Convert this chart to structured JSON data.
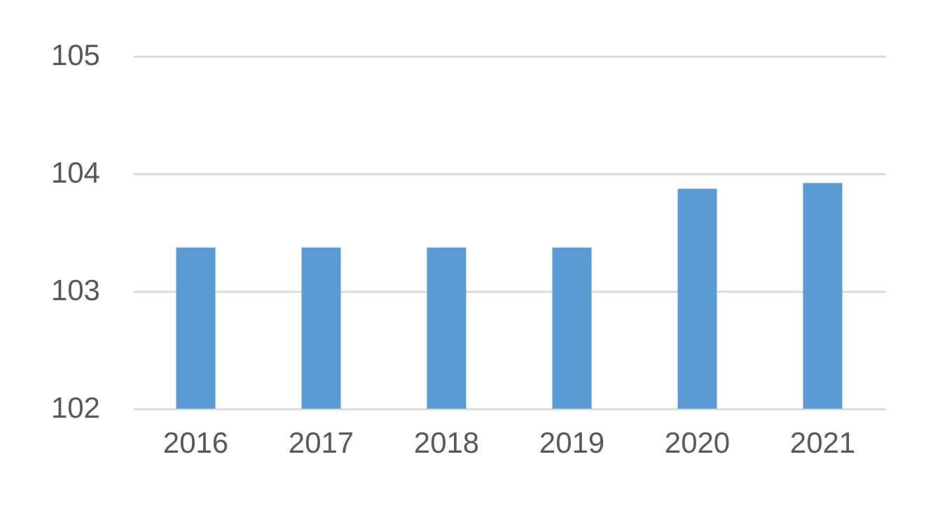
{
  "chart_data": {
    "type": "bar",
    "categories": [
      "2016",
      "2017",
      "2018",
      "2019",
      "2020",
      "2021"
    ],
    "values": [
      103.37,
      103.37,
      103.37,
      103.37,
      103.87,
      103.92
    ],
    "color": "#5b9bd5",
    "ylim": [
      102,
      105
    ],
    "yticks": [
      102,
      103,
      104,
      105
    ],
    "grid": "y"
  }
}
